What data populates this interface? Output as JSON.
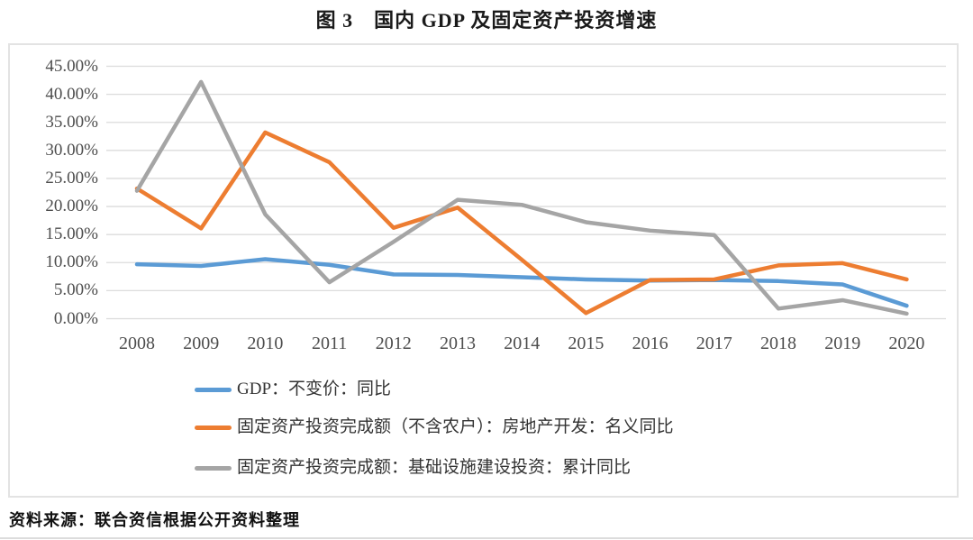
{
  "page": {
    "title": "图 3　国内 GDP 及固定资产投资增速",
    "source": "资料来源：联合资信根据公开资料整理"
  },
  "chart_data": {
    "type": "line",
    "title": "图 3　国内 GDP 及固定资产投资增速",
    "categories": [
      "2008",
      "2009",
      "2010",
      "2011",
      "2012",
      "2013",
      "2014",
      "2015",
      "2016",
      "2017",
      "2018",
      "2019",
      "2020"
    ],
    "y_tick_labels": [
      "45.00%",
      "40.00%",
      "35.00%",
      "30.00%",
      "25.00%",
      "20.00%",
      "15.00%",
      "10.00%",
      "5.00%",
      "0.00%"
    ],
    "ylim": [
      0,
      45
    ],
    "y_tick_step": 5,
    "unit": "percent",
    "grid": true,
    "legend_position": "bottom-left",
    "gridline_color": "#dcdcdc",
    "series": [
      {
        "key": "gdp",
        "name": "GDP：不变价：同比",
        "color": "#5B9BD5",
        "values": [
          9.7,
          9.4,
          10.6,
          9.6,
          7.9,
          7.8,
          7.4,
          7.0,
          6.8,
          6.9,
          6.7,
          6.1,
          2.3
        ]
      },
      {
        "key": "real-estate",
        "name": "固定资产投资完成额（不含农户）：房地产开发：名义同比",
        "color": "#ED7D31",
        "values": [
          23.2,
          16.1,
          33.2,
          27.9,
          16.2,
          19.8,
          10.5,
          1.0,
          6.9,
          7.0,
          9.5,
          9.9,
          7.0
        ]
      },
      {
        "key": "infrastructure",
        "name": "固定资产投资完成额：基础设施建设投资：累计同比",
        "color": "#A5A5A5",
        "values": [
          22.8,
          42.2,
          18.6,
          6.5,
          13.7,
          21.2,
          20.3,
          17.2,
          15.7,
          14.9,
          1.8,
          3.3,
          0.9
        ]
      }
    ]
  }
}
